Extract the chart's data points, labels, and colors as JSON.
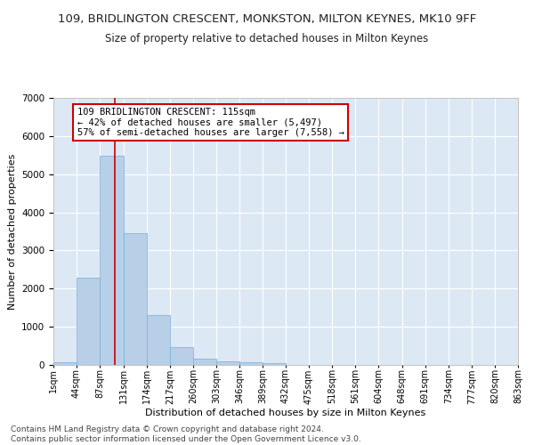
{
  "title": "109, BRIDLINGTON CRESCENT, MONKSTON, MILTON KEYNES, MK10 9FF",
  "subtitle": "Size of property relative to detached houses in Milton Keynes",
  "xlabel": "Distribution of detached houses by size in Milton Keynes",
  "ylabel": "Number of detached properties",
  "footer_line1": "Contains HM Land Registry data © Crown copyright and database right 2024.",
  "footer_line2": "Contains public sector information licensed under the Open Government Licence v3.0.",
  "annotation_line1": "109 BRIDLINGTON CRESCENT: 115sqm",
  "annotation_line2": "← 42% of detached houses are smaller (5,497)",
  "annotation_line3": "57% of semi-detached houses are larger (7,558) →",
  "bar_color": "#b8cfe8",
  "bar_edge_color": "#7aafd4",
  "background_color": "#dde8f5",
  "grid_color": "#ffffff",
  "annotation_box_color": "#cc0000",
  "red_line_color": "#cc0000",
  "property_line_x": 115,
  "bin_edges": [
    1,
    44,
    87,
    131,
    174,
    217,
    260,
    303,
    346,
    389,
    432,
    475,
    518,
    561,
    604,
    648,
    691,
    734,
    777,
    820,
    863
  ],
  "bar_heights": [
    80,
    2280,
    5480,
    3450,
    1310,
    470,
    160,
    90,
    75,
    40,
    0,
    0,
    0,
    0,
    0,
    0,
    0,
    0,
    0,
    0
  ],
  "ylim": [
    0,
    7000
  ],
  "yticks": [
    0,
    1000,
    2000,
    3000,
    4000,
    5000,
    6000,
    7000
  ],
  "title_fontsize": 9.5,
  "subtitle_fontsize": 8.5,
  "axis_label_fontsize": 8,
  "tick_label_fontsize": 7,
  "annotation_fontsize": 7.5,
  "footer_fontsize": 6.5
}
